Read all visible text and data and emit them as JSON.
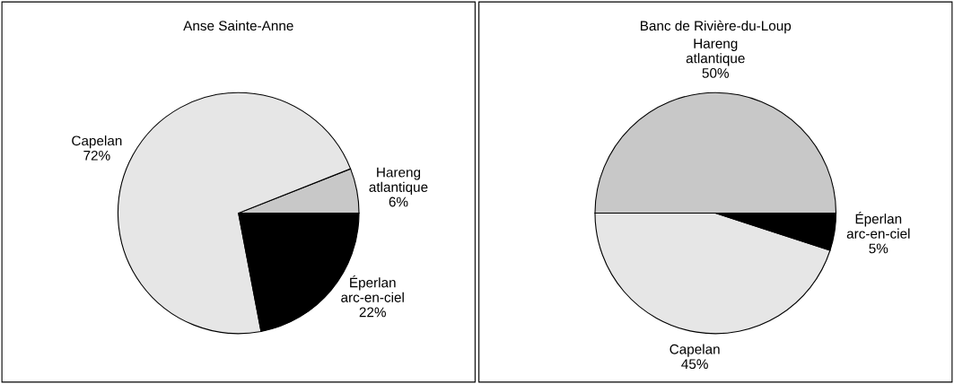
{
  "chart_data": [
    {
      "type": "pie",
      "title": "Anse Sainte-Anne",
      "categories": [
        "Hareng atlantique",
        "Capelan",
        "Éperlan arc-en-ciel"
      ],
      "values": [
        6,
        72,
        22
      ],
      "value_labels": [
        "6%",
        "72%",
        "22%"
      ],
      "colors": [
        "#c8c8c8",
        "#e6e6e6",
        "#000000"
      ]
    },
    {
      "type": "pie",
      "title": "Banc de Rivière-du-Loup",
      "categories": [
        "Hareng atlantique",
        "Capelan",
        "Éperlan arc-en-ciel"
      ],
      "values": [
        50,
        45,
        5
      ],
      "value_labels": [
        "50%",
        "45%",
        "5%"
      ],
      "colors": [
        "#c8c8c8",
        "#e6e6e6",
        "#000000"
      ]
    }
  ]
}
